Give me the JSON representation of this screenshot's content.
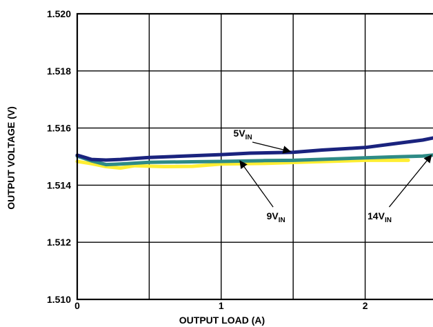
{
  "chart_data": {
    "type": "line",
    "title": "",
    "xlabel": "OUTPUT LOAD (A)",
    "ylabel": "OUTPUT VOLTAGE (V)",
    "xlim": [
      0,
      2.5
    ],
    "ylim": [
      1.51,
      1.52
    ],
    "x_ticks": [
      0,
      1,
      2
    ],
    "x_tick_labels": [
      "0",
      "1",
      "2"
    ],
    "x_grid": [
      0,
      0.5,
      1,
      1.5,
      2,
      2.5
    ],
    "y_ticks": [
      1.51,
      1.512,
      1.514,
      1.516,
      1.518,
      1.52
    ],
    "y_tick_labels": [
      "1.510",
      "1.512",
      "1.514",
      "1.516",
      "1.518",
      "1.520"
    ],
    "grid": true,
    "legend": "none",
    "series": [
      {
        "color": "#1a237e",
        "points": [
          [
            0,
            1.51505
          ],
          [
            0.1,
            1.5149
          ],
          [
            0.2,
            1.51488
          ],
          [
            0.3,
            1.5149
          ],
          [
            0.5,
            1.51497
          ],
          [
            0.8,
            1.51503
          ],
          [
            1.0,
            1.51507
          ],
          [
            1.2,
            1.51512
          ],
          [
            1.5,
            1.51515
          ],
          [
            1.7,
            1.51523
          ],
          [
            2.0,
            1.51532
          ],
          [
            2.2,
            1.51545
          ],
          [
            2.4,
            1.51558
          ],
          [
            2.5,
            1.51568
          ]
        ]
      },
      {
        "color": "#2e8b86",
        "points": [
          [
            0,
            1.51502
          ],
          [
            0.1,
            1.51485
          ],
          [
            0.2,
            1.51472
          ],
          [
            0.3,
            1.51474
          ],
          [
            0.5,
            1.5148
          ],
          [
            0.8,
            1.51482
          ],
          [
            1.0,
            1.51483
          ],
          [
            1.3,
            1.51486
          ],
          [
            1.5,
            1.51487
          ],
          [
            1.8,
            1.51492
          ],
          [
            2.0,
            1.51496
          ],
          [
            2.2,
            1.51499
          ],
          [
            2.4,
            1.51502
          ],
          [
            2.5,
            1.51507
          ]
        ]
      },
      {
        "color": "#ffee33",
        "points": [
          [
            0,
            1.51483
          ],
          [
            0.1,
            1.51475
          ],
          [
            0.2,
            1.51465
          ],
          [
            0.3,
            1.5146
          ],
          [
            0.4,
            1.51468
          ],
          [
            0.6,
            1.51465
          ],
          [
            0.8,
            1.51466
          ],
          [
            1.0,
            1.51474
          ],
          [
            1.3,
            1.51476
          ],
          [
            1.6,
            1.51481
          ],
          [
            1.8,
            1.51484
          ],
          [
            2.0,
            1.51487
          ],
          [
            2.3,
            1.51487
          ]
        ]
      }
    ],
    "annotations": [
      {
        "label": "5V",
        "sub": "IN",
        "at": [
          1.15,
          1.5157
        ],
        "arrow_to": [
          1.48,
          1.51518
        ]
      },
      {
        "label": "9V",
        "sub": "IN",
        "at": [
          1.38,
          1.5128
        ],
        "arrow_to": [
          1.13,
          1.51485
        ]
      },
      {
        "label": "14V",
        "sub": "IN",
        "at": [
          2.1,
          1.5128
        ],
        "arrow_to": [
          2.46,
          1.51505
        ]
      }
    ]
  }
}
